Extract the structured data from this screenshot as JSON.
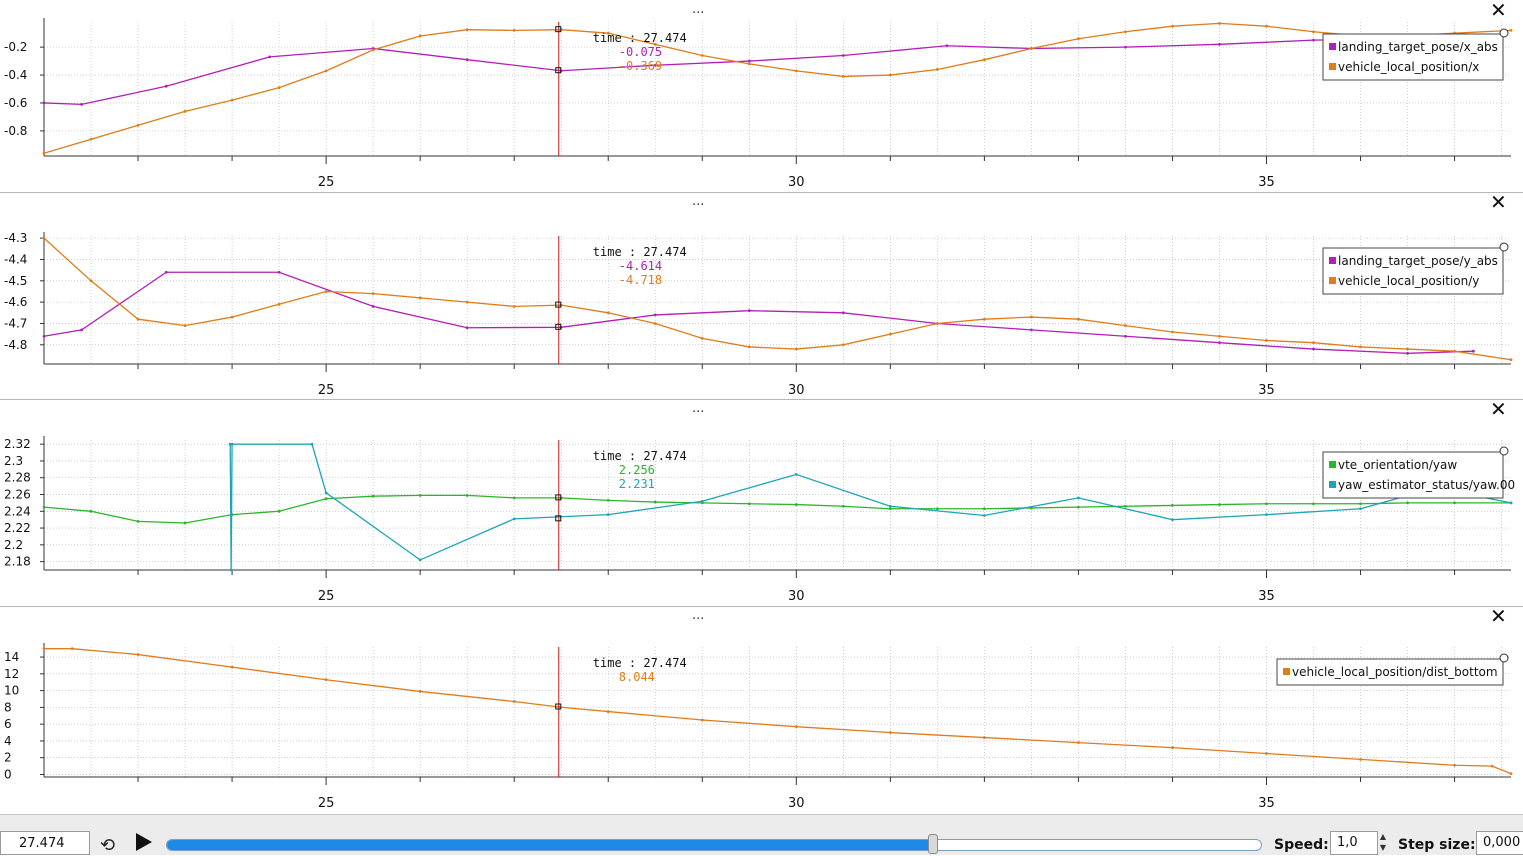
{
  "panels": [
    {
      "top": 0,
      "height": 192,
      "plotTop": 22,
      "plotBottom": 156,
      "yTicks": [
        "-0.2",
        "-0.4",
        "-0.6",
        "-0.8"
      ],
      "yTickVals": [
        -0.2,
        -0.4,
        -0.6,
        -0.8
      ],
      "ylim": [
        -0.98,
        -0.02
      ],
      "cursorValues": [
        "-0.075",
        "-0.369"
      ],
      "legend": [
        "landing_target_pose/x_abs",
        "vehicle_local_position/x"
      ],
      "series": [
        {
          "name": "landing_target_pose/x_abs",
          "color": "#b31eb8",
          "points": [
            [
              22.0,
              -0.6
            ],
            [
              22.4,
              -0.61
            ],
            [
              23.3,
              -0.48
            ],
            [
              24.4,
              -0.27
            ],
            [
              25.5,
              -0.21
            ],
            [
              26.5,
              -0.29
            ],
            [
              27.5,
              -0.369
            ],
            [
              28.5,
              -0.33
            ],
            [
              29.5,
              -0.3
            ],
            [
              30.5,
              -0.26
            ],
            [
              31.6,
              -0.19
            ],
            [
              32.5,
              -0.21
            ],
            [
              33.5,
              -0.2
            ],
            [
              34.5,
              -0.18
            ],
            [
              35.5,
              -0.15
            ],
            [
              36.5,
              -0.14
            ],
            [
              37.5,
              -0.12
            ]
          ]
        },
        {
          "name": "vehicle_local_position/x",
          "color": "#e07c1a",
          "points": [
            [
              22.0,
              -0.96
            ],
            [
              22.5,
              -0.86
            ],
            [
              23.0,
              -0.76
            ],
            [
              23.5,
              -0.66
            ],
            [
              24.0,
              -0.58
            ],
            [
              24.5,
              -0.49
            ],
            [
              25.0,
              -0.37
            ],
            [
              25.5,
              -0.22
            ],
            [
              26.0,
              -0.12
            ],
            [
              26.5,
              -0.075
            ],
            [
              27.0,
              -0.08
            ],
            [
              27.5,
              -0.075
            ],
            [
              28.0,
              -0.1
            ],
            [
              28.5,
              -0.18
            ],
            [
              29.0,
              -0.26
            ],
            [
              29.5,
              -0.32
            ],
            [
              30.0,
              -0.37
            ],
            [
              30.5,
              -0.41
            ],
            [
              31.0,
              -0.4
            ],
            [
              31.5,
              -0.36
            ],
            [
              32.0,
              -0.29
            ],
            [
              32.5,
              -0.21
            ],
            [
              33.0,
              -0.14
            ],
            [
              33.5,
              -0.09
            ],
            [
              34.0,
              -0.05
            ],
            [
              34.5,
              -0.03
            ],
            [
              35.0,
              -0.05
            ],
            [
              35.5,
              -0.09
            ],
            [
              36.0,
              -0.12
            ],
            [
              36.5,
              -0.12
            ],
            [
              37.0,
              -0.1
            ],
            [
              37.6,
              -0.08
            ]
          ]
        }
      ]
    },
    {
      "top": 192,
      "height": 207,
      "plotTop": 236,
      "plotBottom": 364,
      "yTicks": [
        "-4.3",
        "-4.4",
        "-4.5",
        "-4.6",
        "-4.7",
        "-4.8"
      ],
      "yTickVals": [
        -4.3,
        -4.4,
        -4.5,
        -4.6,
        -4.7,
        -4.8
      ],
      "ylim": [
        -4.89,
        -4.29
      ],
      "cursorValues": [
        "-4.614",
        "-4.718"
      ],
      "legend": [
        "landing_target_pose/y_abs",
        "vehicle_local_position/y"
      ],
      "series": [
        {
          "name": "landing_target_pose/y_abs",
          "color": "#b31eb8",
          "points": [
            [
              22.0,
              -4.76
            ],
            [
              22.4,
              -4.73
            ],
            [
              23.3,
              -4.46
            ],
            [
              24.5,
              -4.46
            ],
            [
              25.5,
              -4.62
            ],
            [
              26.5,
              -4.72
            ],
            [
              27.5,
              -4.718
            ],
            [
              28.5,
              -4.66
            ],
            [
              29.5,
              -4.64
            ],
            [
              30.5,
              -4.65
            ],
            [
              31.5,
              -4.7
            ],
            [
              32.5,
              -4.73
            ],
            [
              33.5,
              -4.76
            ],
            [
              34.5,
              -4.79
            ],
            [
              35.5,
              -4.82
            ],
            [
              36.5,
              -4.84
            ],
            [
              37.2,
              -4.83
            ]
          ]
        },
        {
          "name": "vehicle_local_position/y",
          "color": "#e07c1a",
          "points": [
            [
              22.0,
              -4.3
            ],
            [
              22.5,
              -4.5
            ],
            [
              23.0,
              -4.68
            ],
            [
              23.5,
              -4.71
            ],
            [
              24.0,
              -4.67
            ],
            [
              24.5,
              -4.61
            ],
            [
              25.0,
              -4.55
            ],
            [
              25.5,
              -4.56
            ],
            [
              26.0,
              -4.58
            ],
            [
              26.5,
              -4.6
            ],
            [
              27.0,
              -4.62
            ],
            [
              27.5,
              -4.614
            ],
            [
              28.0,
              -4.65
            ],
            [
              28.5,
              -4.7
            ],
            [
              29.0,
              -4.77
            ],
            [
              29.5,
              -4.81
            ],
            [
              30.0,
              -4.82
            ],
            [
              30.5,
              -4.8
            ],
            [
              31.0,
              -4.75
            ],
            [
              31.5,
              -4.7
            ],
            [
              32.0,
              -4.68
            ],
            [
              32.5,
              -4.67
            ],
            [
              33.0,
              -4.68
            ],
            [
              33.5,
              -4.71
            ],
            [
              34.0,
              -4.74
            ],
            [
              34.5,
              -4.76
            ],
            [
              35.0,
              -4.78
            ],
            [
              35.5,
              -4.79
            ],
            [
              36.0,
              -4.81
            ],
            [
              36.5,
              -4.82
            ],
            [
              37.0,
              -4.83
            ],
            [
              37.6,
              -4.87
            ]
          ]
        }
      ]
    },
    {
      "top": 399,
      "height": 207,
      "plotTop": 440,
      "plotBottom": 570,
      "yTicks": [
        "2.32",
        "2.3",
        "2.28",
        "2.26",
        "2.24",
        "2.22",
        "2.2",
        "2.18"
      ],
      "yTickVals": [
        2.32,
        2.3,
        2.28,
        2.26,
        2.24,
        2.22,
        2.2,
        2.18
      ],
      "ylim": [
        2.17,
        2.325
      ],
      "cursorValues": [
        "2.256",
        "2.231"
      ],
      "legend": [
        "vte_orientation/yaw",
        "yaw_estimator_status/yaw.00"
      ],
      "series": [
        {
          "name": "vte_orientation/yaw",
          "color": "#2bb52b",
          "points": [
            [
              22.0,
              2.245
            ],
            [
              22.5,
              2.24
            ],
            [
              23.0,
              2.228
            ],
            [
              23.5,
              2.226
            ],
            [
              24.0,
              2.236
            ],
            [
              24.5,
              2.24
            ],
            [
              25.0,
              2.255
            ],
            [
              25.5,
              2.258
            ],
            [
              26.0,
              2.259
            ],
            [
              26.5,
              2.259
            ],
            [
              27.0,
              2.256
            ],
            [
              27.5,
              2.256
            ],
            [
              28.0,
              2.253
            ],
            [
              28.5,
              2.251
            ],
            [
              29.0,
              2.25
            ],
            [
              29.5,
              2.249
            ],
            [
              30.0,
              2.248
            ],
            [
              30.5,
              2.246
            ],
            [
              31.0,
              2.243
            ],
            [
              31.5,
              2.243
            ],
            [
              32.0,
              2.243
            ],
            [
              32.5,
              2.244
            ],
            [
              33.0,
              2.245
            ],
            [
              33.5,
              2.246
            ],
            [
              34.0,
              2.247
            ],
            [
              34.5,
              2.248
            ],
            [
              35.0,
              2.249
            ],
            [
              35.5,
              2.249
            ],
            [
              36.0,
              2.249
            ],
            [
              36.5,
              2.25
            ],
            [
              37.0,
              2.25
            ],
            [
              37.6,
              2.25
            ]
          ]
        },
        {
          "name": "yaw_estimator_status/yaw.00",
          "color": "#1ba6b8",
          "points": [
            [
              23.98,
              2.32
            ],
            [
              23.99,
              2.17
            ],
            [
              24.0,
              2.32
            ],
            [
              24.85,
              2.32
            ],
            [
              25.0,
              2.262
            ],
            [
              26.0,
              2.182
            ],
            [
              27.0,
              2.231
            ],
            [
              28.0,
              2.236
            ],
            [
              29.0,
              2.252
            ],
            [
              30.0,
              2.284
            ],
            [
              31.0,
              2.246
            ],
            [
              32.0,
              2.235
            ],
            [
              33.0,
              2.256
            ],
            [
              34.0,
              2.23
            ],
            [
              35.0,
              2.236
            ],
            [
              36.0,
              2.243
            ],
            [
              36.8,
              2.268
            ],
            [
              37.6,
              2.25
            ]
          ]
        }
      ]
    },
    {
      "top": 606,
      "height": 208,
      "plotTop": 647,
      "plotBottom": 777,
      "yTicks": [
        "14",
        "12",
        "10",
        "8",
        "6",
        "4",
        "2",
        "0"
      ],
      "yTickVals": [
        14,
        12,
        10,
        8,
        6,
        4,
        2,
        0
      ],
      "ylim": [
        -0.3,
        15.2
      ],
      "cursorValues": [
        "8.044"
      ],
      "legend": [
        "vehicle_local_position/dist_bottom"
      ],
      "series": [
        {
          "name": "vehicle_local_position/dist_bottom",
          "color": "#e07c1a",
          "points": [
            [
              22.0,
              15.0
            ],
            [
              22.3,
              15.0
            ],
            [
              23.0,
              14.3
            ],
            [
              24.0,
              12.8
            ],
            [
              25.0,
              11.3
            ],
            [
              26.0,
              9.9
            ],
            [
              27.0,
              8.7
            ],
            [
              27.474,
              8.044
            ],
            [
              28.0,
              7.5
            ],
            [
              29.0,
              6.5
            ],
            [
              30.0,
              5.7
            ],
            [
              31.0,
              5.0
            ],
            [
              32.0,
              4.4
            ],
            [
              33.0,
              3.8
            ],
            [
              34.0,
              3.2
            ],
            [
              35.0,
              2.5
            ],
            [
              36.0,
              1.8
            ],
            [
              37.0,
              1.1
            ],
            [
              37.4,
              1.0
            ],
            [
              37.6,
              0.1
            ]
          ]
        }
      ]
    }
  ],
  "plot": {
    "xTicks": [
      "25",
      "30",
      "35"
    ],
    "xTickVals": [
      25,
      30,
      35
    ],
    "cursorLabel": "time : 27.474",
    "cursorTime": 27.474,
    "moreLabel": "...",
    "closeLabel": "✕"
  },
  "controls": {
    "time_value": "27.474",
    "loop_icon": "⟲",
    "speed_label": "Speed:",
    "speed_value": "1,0",
    "step_label": "Step size:",
    "step_value": "0,000",
    "progress": 0.7
  }
}
